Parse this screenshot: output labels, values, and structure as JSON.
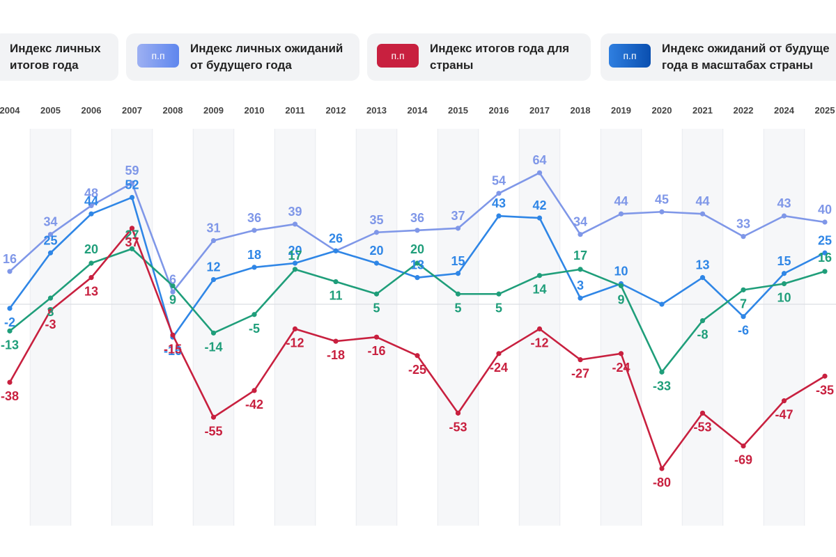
{
  "legend": {
    "items": [
      {
        "text": "Индекс личных\nитогов года"
      },
      {
        "badge": "п.п",
        "text": "Индекс личных ожиданий\nот будущего года"
      },
      {
        "badge": "п.п",
        "text": "Индекс итогов года для\nстраны"
      },
      {
        "badge": "п.п",
        "text": "Индекс ожиданий от будуще\nгода в масштабах страны"
      }
    ]
  },
  "chart_data": {
    "type": "line",
    "categories": [
      "2004",
      "2005",
      "2006",
      "2007",
      "2008",
      "2009",
      "2010",
      "2011",
      "2012",
      "2013",
      "2014",
      "2015",
      "2016",
      "2017",
      "2018",
      "2019",
      "2020",
      "2021",
      "2022",
      "2024",
      "2025"
    ],
    "ylim": [
      -95,
      70
    ],
    "series": [
      {
        "name": "Индекс личных ожиданий от будущего года",
        "color": "#7f97e8",
        "values": [
          16,
          34,
          48,
          59,
          6,
          31,
          36,
          39,
          26,
          35,
          36,
          37,
          54,
          64,
          34,
          44,
          45,
          44,
          33,
          43,
          40
        ],
        "labels": [
          "16",
          "34",
          "48",
          "59",
          "6",
          "31",
          "36",
          "39",
          "",
          "35",
          "36",
          "37",
          "54",
          "64",
          "34",
          "44",
          "45",
          "44",
          "33",
          "43",
          "40"
        ]
      },
      {
        "name": "Индекс ожиданий от будущего года в масштабах страны",
        "color": "#2f86e6",
        "values": [
          -2,
          25,
          44,
          52,
          -16,
          12,
          18,
          20,
          26,
          20,
          13,
          15,
          43,
          42,
          3,
          10,
          0,
          13,
          -6,
          15,
          25
        ],
        "labels": [
          "-2",
          "25",
          "44",
          "52",
          "-16",
          "12",
          "18",
          "20",
          "26",
          "20",
          "13",
          "15",
          "43",
          "42",
          "3",
          "10",
          "",
          "13",
          "-6",
          "15",
          "25"
        ]
      },
      {
        "name": "Индекс личных итогов года",
        "color": "#1f9e7a",
        "values": [
          -13,
          3,
          20,
          27,
          9,
          -14,
          -5,
          17,
          11,
          5,
          20,
          5,
          5,
          14,
          17,
          9,
          -33,
          -8,
          7,
          10,
          16
        ],
        "labels": [
          "-13",
          "3",
          "20",
          "27",
          "9",
          "-14",
          "-5",
          "17",
          "11",
          "5",
          "20",
          "5",
          "5",
          "14",
          "17",
          "9",
          "-33",
          "-8",
          "7",
          "10",
          "16"
        ]
      },
      {
        "name": "Индекс итогов года для страны",
        "color": "#c8203f",
        "values": [
          -38,
          -3,
          13,
          37,
          -15,
          -55,
          -42,
          -12,
          -18,
          -16,
          -25,
          -53,
          -24,
          -12,
          -27,
          -24,
          -80,
          -53,
          -69,
          -47,
          -35
        ],
        "labels": [
          "-38",
          "-3",
          "13",
          "37",
          "-15",
          "-55",
          "-42",
          "-12",
          "-18",
          "-16",
          "-25",
          "-53",
          "-24",
          "-12",
          "-27",
          "-24",
          "-80",
          "-53",
          "-69",
          "-47",
          "-35"
        ]
      }
    ]
  }
}
